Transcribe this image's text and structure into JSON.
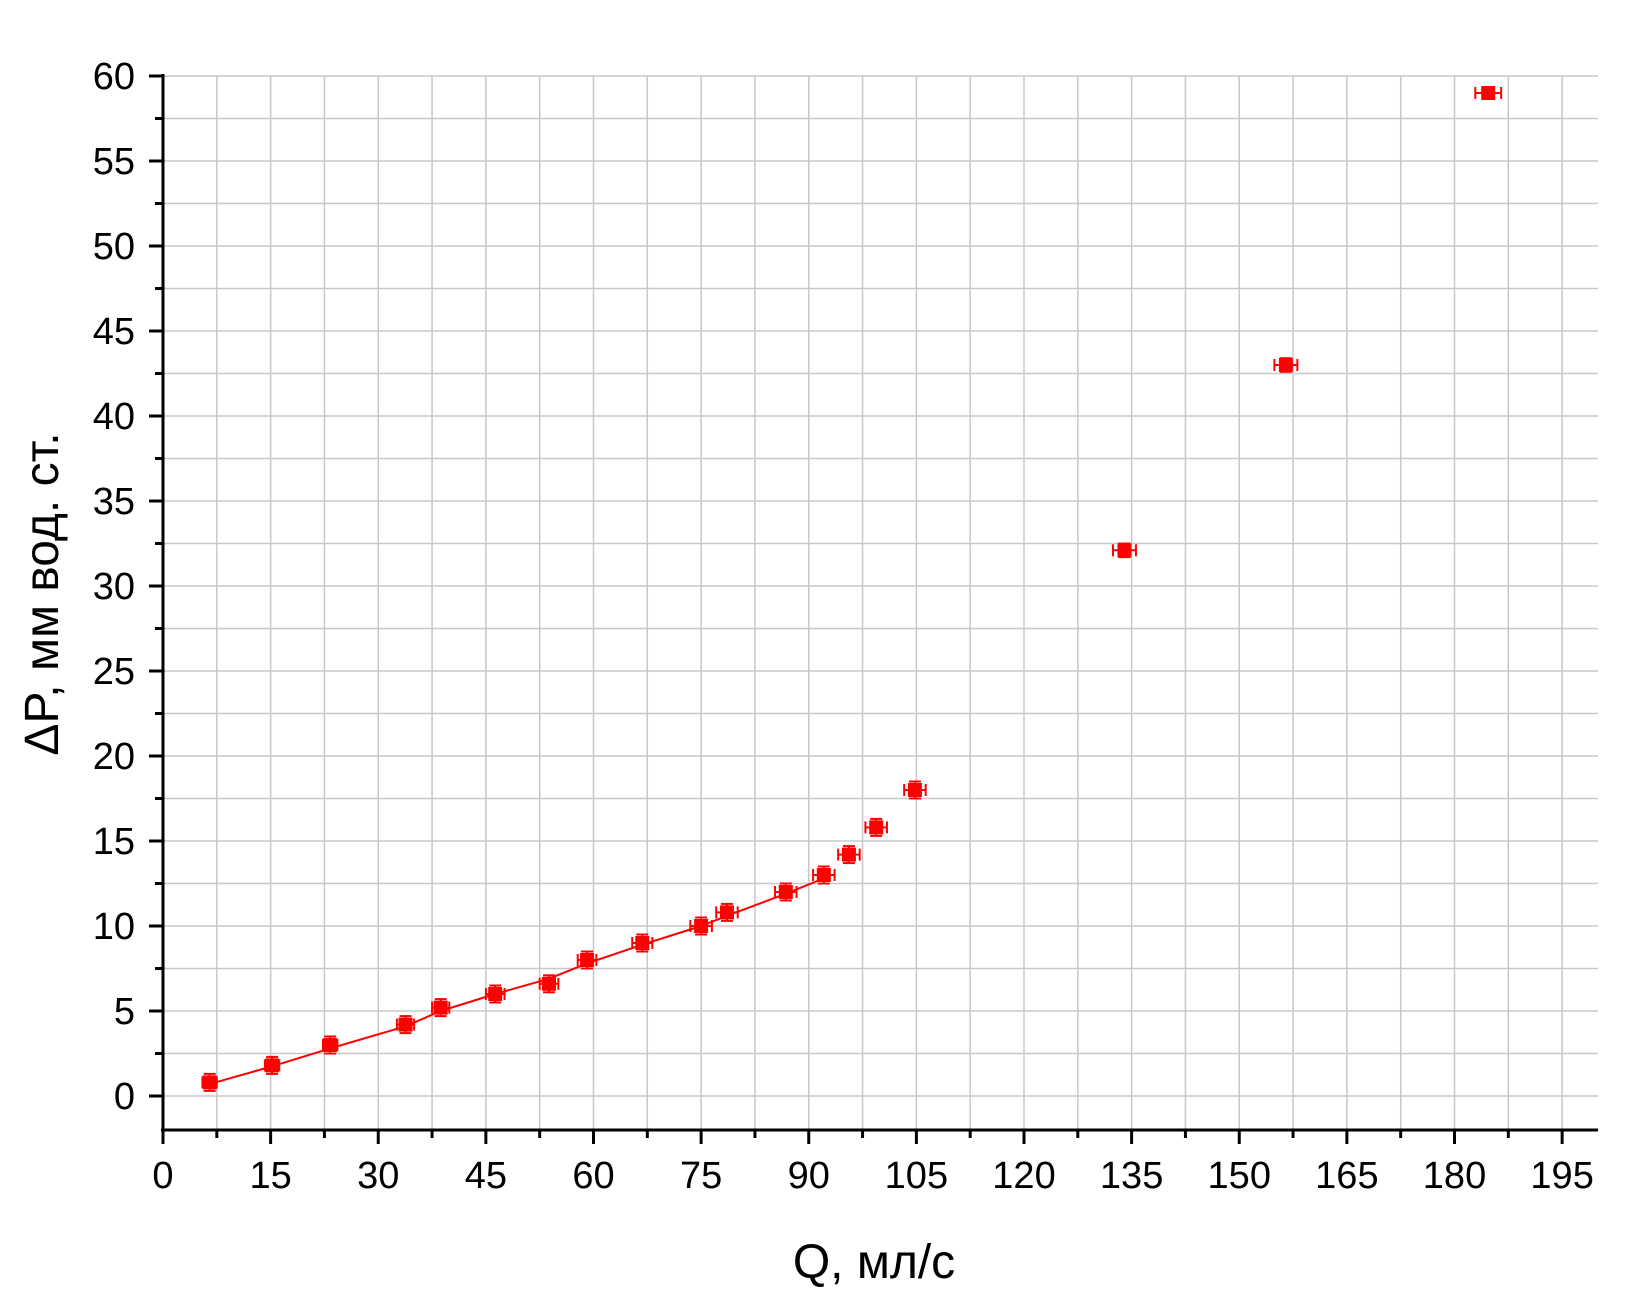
{
  "chart_data": {
    "type": "scatter",
    "title": "",
    "xlabel": "Q, мл/с",
    "ylabel": "ΔP, мм вод. ст.",
    "xlim": [
      0,
      200
    ],
    "ylim": [
      -2,
      60
    ],
    "x_ticks": [
      0,
      15,
      30,
      45,
      60,
      75,
      90,
      105,
      120,
      135,
      150,
      165,
      180,
      195
    ],
    "y_ticks": [
      0,
      5,
      10,
      15,
      20,
      25,
      30,
      35,
      40,
      45,
      50,
      55,
      60
    ],
    "x_tick_labels": [
      "0",
      "15",
      "30",
      "45",
      "60",
      "75",
      "90",
      "105",
      "120",
      "135",
      "150",
      "165",
      "180",
      "195"
    ],
    "y_tick_labels": [
      "0",
      "5",
      "10",
      "15",
      "20",
      "25",
      "30",
      "35",
      "40",
      "45",
      "50",
      "55",
      "60"
    ],
    "grid": true,
    "color": "#ff0000",
    "series": [
      {
        "points": [
          {
            "x": 6.5,
            "y": 0.8,
            "xerr": 1.0,
            "yerr": 0.5
          },
          {
            "x": 15.2,
            "y": 1.8,
            "xerr": 1.0,
            "yerr": 0.5
          },
          {
            "x": 23.3,
            "y": 3.0,
            "xerr": 1.0,
            "yerr": 0.5
          },
          {
            "x": 33.8,
            "y": 4.2,
            "xerr": 1.2,
            "yerr": 0.5
          },
          {
            "x": 38.7,
            "y": 5.2,
            "xerr": 1.2,
            "yerr": 0.5
          },
          {
            "x": 46.3,
            "y": 6.0,
            "xerr": 1.3,
            "yerr": 0.5
          },
          {
            "x": 53.8,
            "y": 6.6,
            "xerr": 1.3,
            "yerr": 0.5
          },
          {
            "x": 59.1,
            "y": 8.0,
            "xerr": 1.3,
            "yerr": 0.5
          },
          {
            "x": 66.8,
            "y": 9.0,
            "xerr": 1.4,
            "yerr": 0.5
          },
          {
            "x": 75.0,
            "y": 10.0,
            "xerr": 1.5,
            "yerr": 0.5
          },
          {
            "x": 78.6,
            "y": 10.8,
            "xerr": 1.5,
            "yerr": 0.5
          },
          {
            "x": 86.8,
            "y": 12.0,
            "xerr": 1.5,
            "yerr": 0.5
          },
          {
            "x": 92.1,
            "y": 13.0,
            "xerr": 1.5,
            "yerr": 0.5
          },
          {
            "x": 95.6,
            "y": 14.2,
            "xerr": 1.5,
            "yerr": 0.5
          },
          {
            "x": 99.4,
            "y": 15.8,
            "xerr": 1.5,
            "yerr": 0.5
          },
          {
            "x": 104.8,
            "y": 18.0,
            "xerr": 1.5,
            "yerr": 0.5
          },
          {
            "x": 134.0,
            "y": 32.1,
            "xerr": 1.6,
            "yerr": 0.4
          },
          {
            "x": 156.5,
            "y": 43.0,
            "xerr": 1.6,
            "yerr": 0.4
          },
          {
            "x": 184.7,
            "y": 59.0,
            "xerr": 1.8,
            "yerr": 0.3
          }
        ]
      }
    ],
    "fit_line": {
      "type": "line",
      "points": [
        {
          "x": 6.5,
          "y": 0.7
        },
        {
          "x": 15.2,
          "y": 1.75
        },
        {
          "x": 23.3,
          "y": 2.8
        },
        {
          "x": 33.8,
          "y": 4.1
        },
        {
          "x": 38.7,
          "y": 5.0
        },
        {
          "x": 46.3,
          "y": 6.0
        },
        {
          "x": 53.8,
          "y": 6.9
        },
        {
          "x": 59.1,
          "y": 7.8
        },
        {
          "x": 66.8,
          "y": 8.9
        },
        {
          "x": 75.0,
          "y": 10.0
        },
        {
          "x": 78.6,
          "y": 10.6
        },
        {
          "x": 86.8,
          "y": 11.9
        },
        {
          "x": 92.1,
          "y": 12.8
        }
      ]
    }
  }
}
